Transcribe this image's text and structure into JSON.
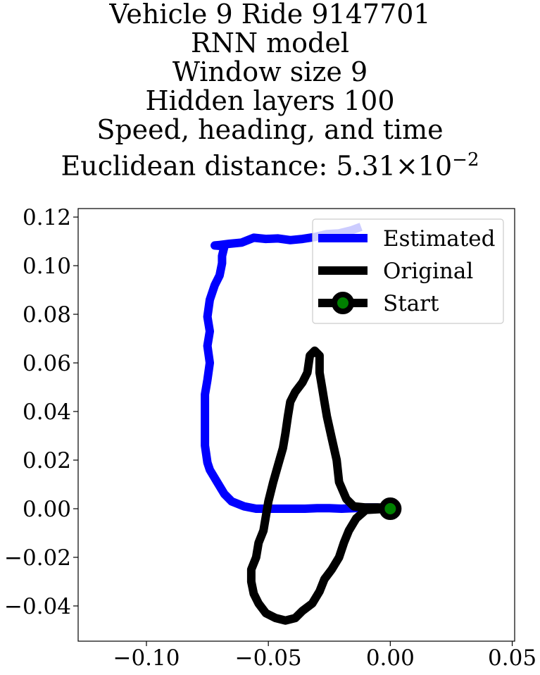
{
  "chart_data": {
    "type": "line",
    "title_lines": [
      "Vehicle 9 Ride 9147701",
      "RNN model",
      "Window size 9",
      "Hidden layers 100",
      "Speed, heading, and time"
    ],
    "title_metric": {
      "label": "Euclidean distance: ",
      "mantissa": "5.31",
      "times": "×",
      "base": "10",
      "exponent": "−2"
    },
    "xlim": [
      -0.128,
      0.051
    ],
    "ylim": [
      -0.0545,
      0.1235
    ],
    "xticks": [
      {
        "value": -0.1,
        "label": "−0.10"
      },
      {
        "value": -0.05,
        "label": "−0.05"
      },
      {
        "value": 0.0,
        "label": "0.00"
      },
      {
        "value": 0.05,
        "label": "0.05"
      }
    ],
    "yticks": [
      {
        "value": 0.12,
        "label": "0.12"
      },
      {
        "value": 0.1,
        "label": "0.10"
      },
      {
        "value": 0.08,
        "label": "0.08"
      },
      {
        "value": 0.06,
        "label": "0.06"
      },
      {
        "value": 0.04,
        "label": "0.04"
      },
      {
        "value": 0.02,
        "label": "0.02"
      },
      {
        "value": 0.0,
        "label": "0.00"
      },
      {
        "value": -0.02,
        "label": "−0.02"
      },
      {
        "value": -0.04,
        "label": "−0.04"
      }
    ],
    "grid": false,
    "legend_position": "top-right",
    "series": [
      {
        "name": "Estimated",
        "color": "#0000ff",
        "points": [
          [
            0.0,
            0.0
          ],
          [
            -0.005,
            0.0005
          ],
          [
            -0.01,
            0.0005
          ],
          [
            -0.015,
            0.0002
          ],
          [
            -0.02,
            0.0
          ],
          [
            -0.025,
            0.0002
          ],
          [
            -0.03,
            0.0002
          ],
          [
            -0.035,
            0.0
          ],
          [
            -0.04,
            0.0
          ],
          [
            -0.045,
            0.0
          ],
          [
            -0.05,
            0.0
          ],
          [
            -0.055,
            0.0
          ],
          [
            -0.06,
            0.001
          ],
          [
            -0.065,
            0.003
          ],
          [
            -0.068,
            0.006
          ],
          [
            -0.071,
            0.011
          ],
          [
            -0.074,
            0.016
          ],
          [
            -0.075,
            0.019
          ],
          [
            -0.076,
            0.026
          ],
          [
            -0.076,
            0.033
          ],
          [
            -0.076,
            0.04
          ],
          [
            -0.076,
            0.047
          ],
          [
            -0.075,
            0.053
          ],
          [
            -0.074,
            0.06
          ],
          [
            -0.075,
            0.067
          ],
          [
            -0.074,
            0.073
          ],
          [
            -0.075,
            0.079
          ],
          [
            -0.074,
            0.086
          ],
          [
            -0.072,
            0.092
          ],
          [
            -0.07,
            0.096
          ],
          [
            -0.069,
            0.101
          ],
          [
            -0.069,
            0.104
          ],
          [
            -0.068,
            0.108
          ],
          [
            -0.072,
            0.1083
          ],
          [
            -0.07,
            0.1085
          ],
          [
            -0.066,
            0.109
          ],
          [
            -0.061,
            0.1095
          ],
          [
            -0.056,
            0.1115
          ],
          [
            -0.051,
            0.111
          ],
          [
            -0.046,
            0.1112
          ],
          [
            -0.041,
            0.1105
          ],
          [
            -0.036,
            0.111
          ],
          [
            -0.031,
            0.1118
          ],
          [
            -0.026,
            0.113
          ],
          [
            -0.021,
            0.1133
          ],
          [
            -0.016,
            0.1145
          ],
          [
            -0.012,
            0.116
          ]
        ]
      },
      {
        "name": "Original",
        "color": "#000000",
        "points": [
          [
            0.0,
            0.0
          ],
          [
            -0.004,
            0.0005
          ],
          [
            -0.01,
            0.0005
          ],
          [
            -0.015,
            0.001
          ],
          [
            -0.018,
            0.004
          ],
          [
            -0.021,
            0.011
          ],
          [
            -0.022,
            0.02
          ],
          [
            -0.024,
            0.029
          ],
          [
            -0.026,
            0.038
          ],
          [
            -0.027,
            0.044
          ],
          [
            -0.028,
            0.05
          ],
          [
            -0.029,
            0.056
          ],
          [
            -0.029,
            0.063
          ],
          [
            -0.031,
            0.065
          ],
          [
            -0.033,
            0.063
          ],
          [
            -0.034,
            0.056
          ],
          [
            -0.036,
            0.052
          ],
          [
            -0.039,
            0.048
          ],
          [
            -0.041,
            0.044
          ],
          [
            -0.042,
            0.038
          ],
          [
            -0.043,
            0.031
          ],
          [
            -0.044,
            0.025
          ],
          [
            -0.046,
            0.018
          ],
          [
            -0.048,
            0.011
          ],
          [
            -0.05,
            0.003
          ],
          [
            -0.051,
            -0.003
          ],
          [
            -0.052,
            -0.009
          ],
          [
            -0.054,
            -0.014
          ],
          [
            -0.055,
            -0.02
          ],
          [
            -0.057,
            -0.025
          ],
          [
            -0.057,
            -0.03
          ],
          [
            -0.056,
            -0.035
          ],
          [
            -0.054,
            -0.039
          ],
          [
            -0.051,
            -0.043
          ],
          [
            -0.047,
            -0.045
          ],
          [
            -0.043,
            -0.046
          ],
          [
            -0.039,
            -0.045
          ],
          [
            -0.036,
            -0.042
          ],
          [
            -0.032,
            -0.039
          ],
          [
            -0.029,
            -0.034
          ],
          [
            -0.027,
            -0.029
          ],
          [
            -0.024,
            -0.025
          ],
          [
            -0.021,
            -0.02
          ],
          [
            -0.019,
            -0.014
          ],
          [
            -0.017,
            -0.009
          ],
          [
            -0.014,
            -0.004
          ],
          [
            -0.01,
            -0.0005
          ],
          [
            -0.005,
            -0.0002
          ],
          [
            0.0,
            0.0
          ]
        ]
      },
      {
        "name": "Start",
        "color": "#000000",
        "marker_face": "#008000",
        "points": [
          [
            0.0,
            0.0
          ]
        ]
      }
    ]
  }
}
